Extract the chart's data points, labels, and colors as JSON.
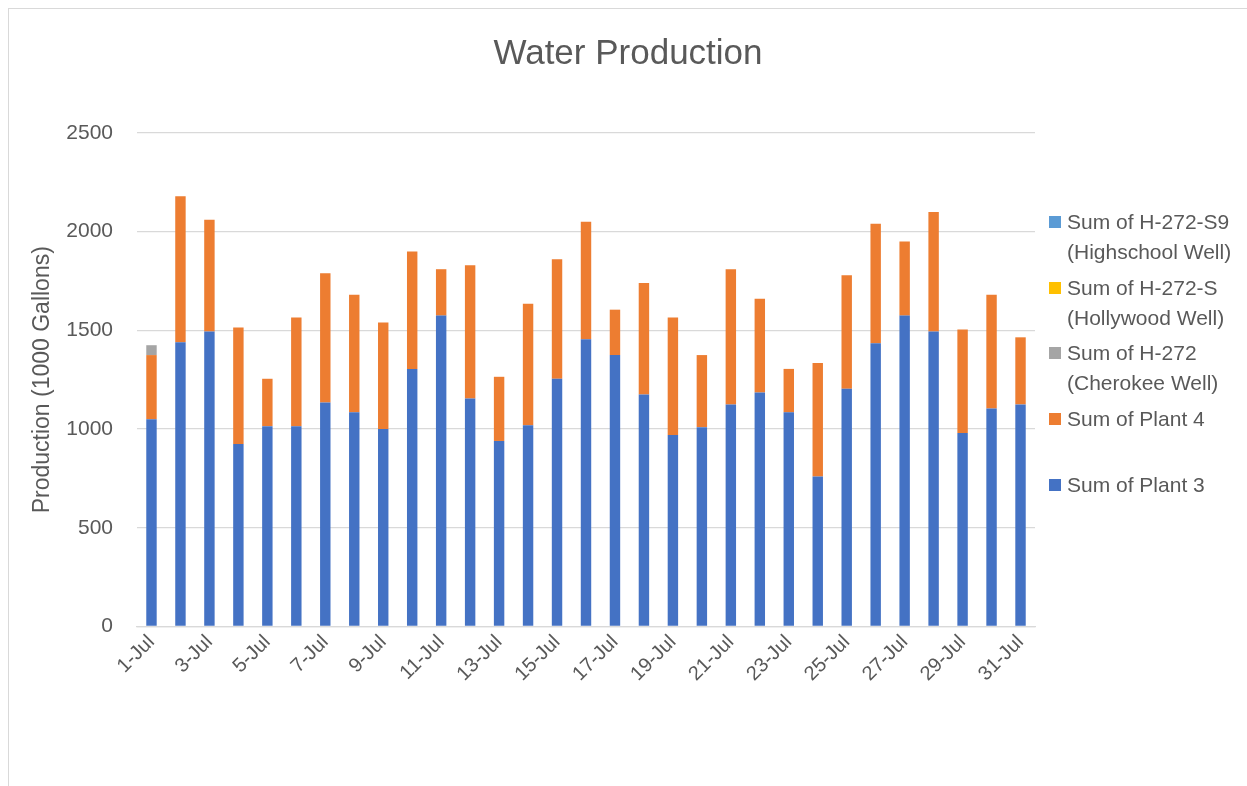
{
  "chart_data": {
    "type": "bar",
    "title": "Water Production",
    "ylabel": "Production (1000 Gallons)",
    "categories": [
      "1-Jul",
      null,
      "3-Jul",
      null,
      "5-Jul",
      null,
      "7-Jul",
      null,
      "9-Jul",
      null,
      "11-Jul",
      null,
      "13-Jul",
      null,
      "15-Jul",
      null,
      "17-Jul",
      null,
      "19-Jul",
      null,
      "21-Jul",
      null,
      "23-Jul",
      null,
      "25-Jul",
      null,
      "27-Jul",
      null,
      "29-Jul",
      null,
      "31-Jul"
    ],
    "stacked": true,
    "series": [
      {
        "name": "Sum of Plant 3",
        "color": "#4472c4",
        "values": [
          1050,
          1440,
          1495,
          925,
          1015,
          1015,
          1135,
          1085,
          1000,
          1305,
          1575,
          1155,
          940,
          1020,
          1255,
          1455,
          1375,
          1175,
          970,
          1010,
          1125,
          1185,
          1085,
          760,
          1205,
          1435,
          1575,
          1495,
          980,
          1105,
          1125
        ]
      },
      {
        "name": "Sum of Plant 4",
        "color": "#ed7d31",
        "values": [
          325,
          740,
          565,
          590,
          240,
          550,
          655,
          595,
          540,
          595,
          235,
          675,
          325,
          615,
          605,
          595,
          230,
          565,
          595,
          365,
          685,
          475,
          220,
          575,
          575,
          605,
          375,
          605,
          525,
          575,
          340
        ]
      },
      {
        "name": "Sum of H-272 (Cherokee Well)",
        "color": "#a5a5a5",
        "values": [
          50,
          null,
          null,
          null,
          null,
          null,
          null,
          null,
          null,
          null,
          null,
          null,
          null,
          null,
          null,
          null,
          null,
          null,
          null,
          null,
          null,
          null,
          null,
          null,
          null,
          null,
          null,
          null,
          null,
          null,
          null
        ]
      },
      {
        "name": "Sum of H-272-S (Hollywood Well)",
        "color": "#ffc000",
        "values": [
          null,
          null,
          null,
          null,
          null,
          null,
          null,
          null,
          null,
          null,
          null,
          null,
          null,
          null,
          null,
          null,
          null,
          null,
          null,
          null,
          null,
          null,
          null,
          null,
          null,
          null,
          null,
          null,
          null,
          null,
          null
        ]
      },
      {
        "name": "Sum of H-272-S9 (Highschool Well)",
        "color": "#5b9bd5",
        "values": [
          null,
          null,
          null,
          null,
          null,
          null,
          null,
          null,
          null,
          null,
          null,
          null,
          null,
          null,
          null,
          null,
          null,
          null,
          null,
          null,
          null,
          null,
          null,
          null,
          null,
          null,
          null,
          null,
          null,
          null,
          null
        ]
      }
    ],
    "ylim": [
      0,
      2500
    ],
    "yticks": [
      0,
      500,
      1000,
      1500,
      2000,
      2500
    ],
    "grid": "y",
    "legend": "right"
  }
}
